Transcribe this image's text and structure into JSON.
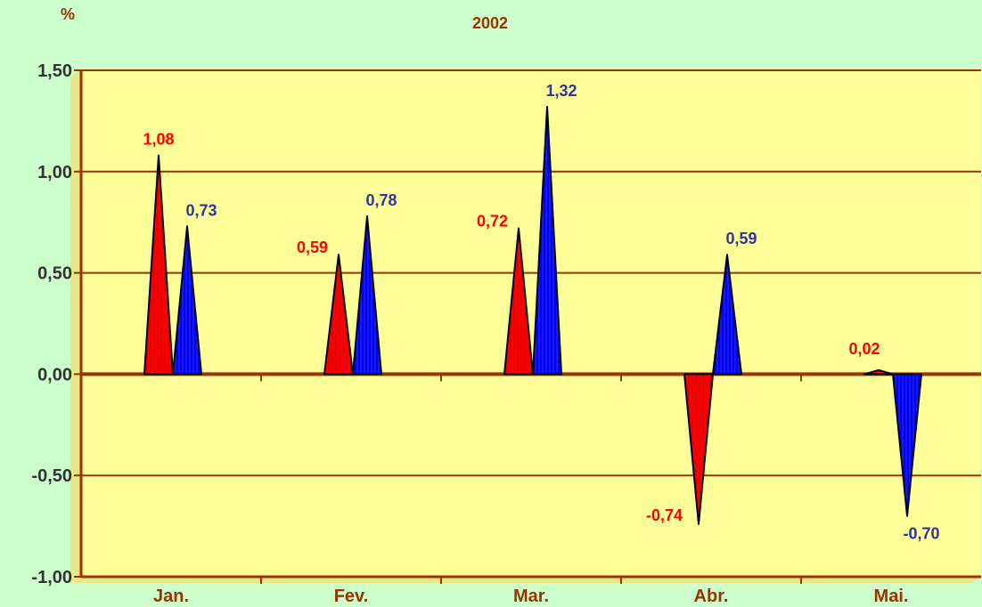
{
  "chart_data": {
    "type": "area",
    "title": "",
    "subtitle": "2002",
    "ylabel": "%",
    "xlabel": "",
    "categories": [
      "Jan.",
      "Fev.",
      "Mar.",
      "Abr.",
      "Mai."
    ],
    "series": [
      {
        "color": "#ff0000",
        "label_color": "#ff0000",
        "values": [
          1.08,
          0.59,
          0.72,
          -0.74,
          0.02
        ]
      },
      {
        "color": "#0000ff",
        "label_color": "#333399",
        "values": [
          0.73,
          0.78,
          1.32,
          0.59,
          -0.7
        ]
      }
    ],
    "value_labels": [
      [
        "1,08",
        "0,59",
        "0,72",
        "-0,74",
        "0,02"
      ],
      [
        "0,73",
        "0,78",
        "1,32",
        "0,59",
        "-0,70"
      ]
    ],
    "ylim": [
      -1.0,
      1.5
    ],
    "yticks": [
      1.5,
      1.0,
      0.5,
      0.0,
      -0.5,
      -1.0
    ],
    "ytick_labels": [
      "1,50",
      "1,00",
      "0,50",
      "0,00",
      "-0,50",
      "-1,00"
    ],
    "grid": true,
    "legend": "none"
  },
  "colors": {
    "background": "#ccffcc",
    "plot_area": "#ffff99",
    "axis": "#993300",
    "gridline": "#993300"
  }
}
